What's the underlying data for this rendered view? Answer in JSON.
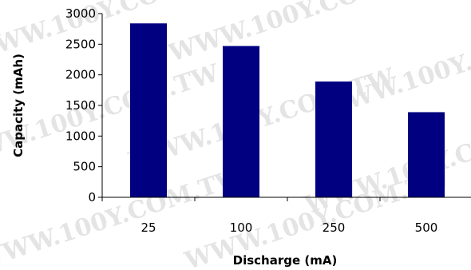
{
  "watermark": "WWW.100Y.COM.TW",
  "chart_data": {
    "type": "bar",
    "categories": [
      "25",
      "100",
      "250",
      "500"
    ],
    "values": [
      2840,
      2470,
      1890,
      1390
    ],
    "xlabel": "Discharge (mA)",
    "ylabel": "Capacity (mAh)",
    "ylim": [
      0,
      3000
    ],
    "yticks": [
      "0",
      "500",
      "1000",
      "1500",
      "2000",
      "2500",
      "3000"
    ],
    "bar_color": "#000080",
    "grid": false,
    "legend": "none"
  }
}
